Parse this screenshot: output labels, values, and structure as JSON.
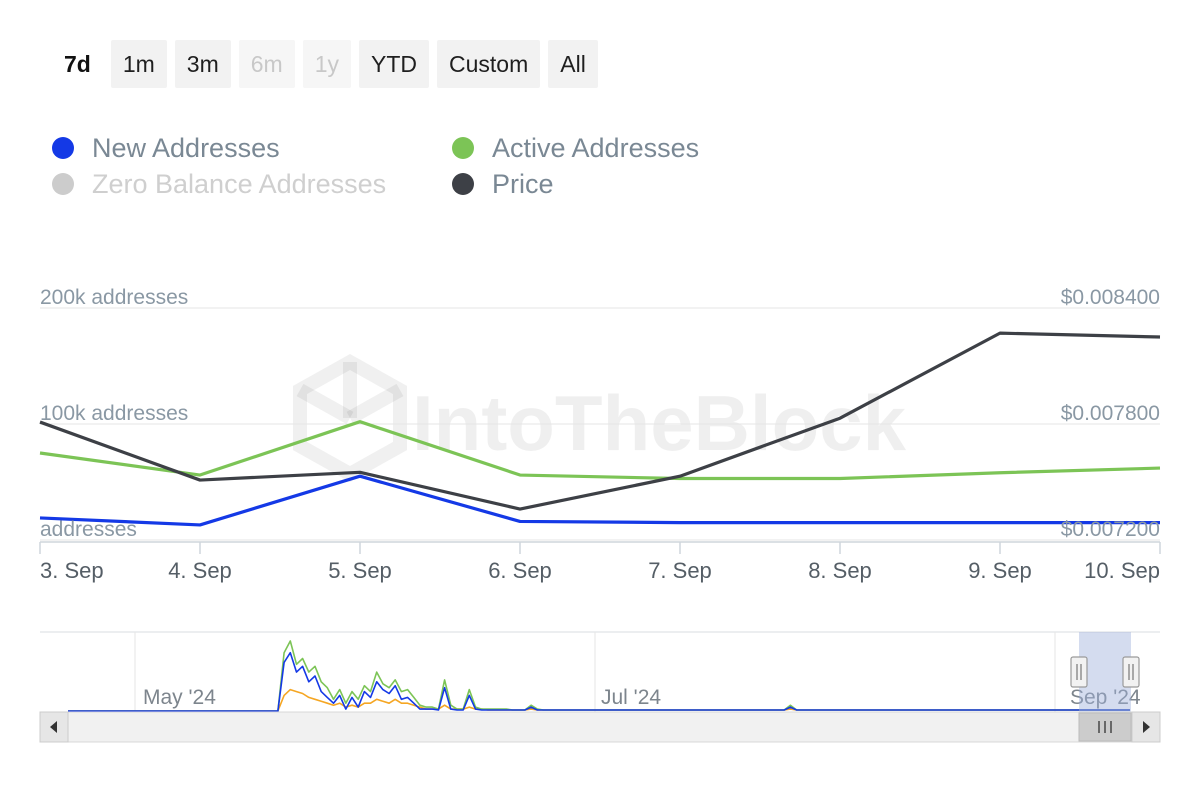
{
  "range_selector": {
    "buttons": [
      {
        "label": "7d",
        "state": "selected"
      },
      {
        "label": "1m",
        "state": "normal"
      },
      {
        "label": "3m",
        "state": "normal"
      },
      {
        "label": "6m",
        "state": "disabled"
      },
      {
        "label": "1y",
        "state": "disabled"
      },
      {
        "label": "YTD",
        "state": "normal"
      },
      {
        "label": "Custom",
        "state": "normal"
      },
      {
        "label": "All",
        "state": "normal"
      }
    ]
  },
  "legend": {
    "items": [
      {
        "label": "New Addresses",
        "color": "#1439e6",
        "active": true
      },
      {
        "label": "Active Addresses",
        "color": "#7cc456",
        "active": true
      },
      {
        "label": "Zero Balance Addresses",
        "color": "#cccccc",
        "active": false
      },
      {
        "label": "Price",
        "color": "#3d4046",
        "active": true
      }
    ]
  },
  "watermark": {
    "text": "IntoTheBlock"
  },
  "chart_data": {
    "type": "line",
    "x": [
      "3. Sep",
      "4. Sep",
      "5. Sep",
      "6. Sep",
      "7. Sep",
      "8. Sep",
      "9. Sep",
      "10. Sep"
    ],
    "left_axis": {
      "ticks": [
        0,
        100000,
        200000
      ],
      "tick_labels": [
        "addresses",
        "100k addresses",
        "200k addresses"
      ],
      "range": [
        0,
        200000
      ]
    },
    "right_axis": {
      "ticks": [
        0.0072,
        0.0078,
        0.0084
      ],
      "tick_labels": [
        "$0.007200",
        "$0.007800",
        "$0.008400"
      ],
      "range": [
        0.0072,
        0.0084
      ]
    },
    "series": [
      {
        "name": "New Addresses",
        "axis": "left",
        "color": "#1439e6",
        "values": [
          19000,
          13000,
          55000,
          16000,
          15000,
          15000,
          15000,
          15000
        ]
      },
      {
        "name": "Active Addresses",
        "axis": "left",
        "color": "#7cc456",
        "values": [
          75000,
          56000,
          102000,
          56000,
          53000,
          53000,
          58000,
          62000
        ]
      },
      {
        "name": "Price",
        "axis": "right",
        "color": "#3d4046",
        "values": [
          0.00781,
          0.00751,
          0.00755,
          0.00736,
          0.00753,
          0.00783,
          0.00827,
          0.00825
        ]
      }
    ],
    "grid": true,
    "legend_position": "top-left"
  },
  "navigator": {
    "labels": [
      "May '24",
      "Jul '24",
      "Sep '24"
    ],
    "series": {
      "green": {
        "color": "#7cc456",
        "values": [
          0,
          0,
          0,
          0,
          0,
          0,
          0,
          0,
          0,
          0,
          0,
          0,
          0,
          0,
          0,
          0,
          0,
          0,
          0,
          0,
          0,
          0,
          0,
          0,
          0,
          0,
          0,
          0,
          0,
          0,
          0,
          0,
          0,
          0,
          0,
          60,
          72,
          48,
          54,
          40,
          46,
          30,
          24,
          12,
          22,
          8,
          20,
          12,
          26,
          20,
          40,
          28,
          24,
          32,
          20,
          22,
          14,
          6,
          4,
          4,
          2,
          32,
          6,
          2,
          2,
          22,
          4,
          2,
          2,
          2,
          2,
          2,
          1,
          1,
          1,
          6,
          2,
          1,
          1,
          1,
          1,
          1,
          1,
          1,
          1,
          1,
          1,
          1,
          1,
          1,
          1,
          1,
          1,
          1,
          1,
          1,
          1,
          1,
          1,
          1,
          1,
          1,
          1,
          1,
          1,
          1,
          1,
          1,
          1,
          1,
          1,
          1,
          1,
          1,
          1,
          1,
          1,
          6,
          1,
          1,
          1,
          1,
          1,
          1,
          1,
          1,
          1,
          1,
          1,
          1,
          1,
          1,
          1,
          1,
          1,
          1,
          1,
          1,
          1,
          1,
          1,
          1,
          1,
          1,
          1,
          1,
          1,
          1,
          1,
          1,
          1,
          1,
          1,
          1,
          1,
          1,
          1,
          1,
          1,
          1,
          1,
          1,
          1,
          1,
          1,
          1,
          1,
          1,
          1,
          1,
          1,
          1,
          1
        ]
      },
      "blue": {
        "color": "#1439e6",
        "values": [
          0,
          0,
          0,
          0,
          0,
          0,
          0,
          0,
          0,
          0,
          0,
          0,
          0,
          0,
          0,
          0,
          0,
          0,
          0,
          0,
          0,
          0,
          0,
          0,
          0,
          0,
          0,
          0,
          0,
          0,
          0,
          0,
          0,
          0,
          0,
          50,
          60,
          40,
          46,
          30,
          36,
          20,
          14,
          8,
          16,
          2,
          14,
          4,
          20,
          14,
          30,
          22,
          18,
          26,
          12,
          14,
          8,
          2,
          2,
          2,
          1,
          24,
          2,
          1,
          1,
          16,
          2,
          1,
          1,
          1,
          1,
          1,
          1,
          1,
          1,
          4,
          1,
          1,
          1,
          1,
          1,
          1,
          1,
          1,
          1,
          1,
          1,
          1,
          1,
          1,
          1,
          1,
          1,
          1,
          1,
          1,
          1,
          1,
          1,
          1,
          1,
          1,
          1,
          1,
          1,
          1,
          1,
          1,
          1,
          1,
          1,
          1,
          1,
          1,
          1,
          1,
          1,
          4,
          1,
          1,
          1,
          1,
          1,
          1,
          1,
          1,
          1,
          1,
          1,
          1,
          1,
          1,
          1,
          1,
          1,
          1,
          1,
          1,
          1,
          1,
          1,
          1,
          1,
          1,
          1,
          1,
          1,
          1,
          1,
          1,
          1,
          1,
          1,
          1,
          1,
          1,
          1,
          1,
          1,
          1,
          1,
          1,
          1,
          1,
          1,
          1,
          1,
          1,
          1,
          1,
          1,
          1,
          1
        ]
      },
      "orange": {
        "color": "#f5a623",
        "values": [
          0,
          0,
          0,
          0,
          0,
          0,
          0,
          0,
          0,
          0,
          0,
          0,
          0,
          0,
          0,
          0,
          0,
          0,
          0,
          0,
          0,
          0,
          0,
          0,
          0,
          0,
          0,
          0,
          0,
          0,
          0,
          0,
          0,
          0,
          0,
          16,
          22,
          20,
          18,
          14,
          12,
          10,
          8,
          6,
          8,
          4,
          6,
          4,
          8,
          8,
          12,
          10,
          8,
          12,
          8,
          8,
          6,
          4,
          2,
          2,
          2,
          6,
          2,
          2,
          2,
          4,
          2,
          2,
          1,
          1,
          1,
          1,
          1,
          1,
          1,
          2,
          1,
          1,
          1,
          1,
          1,
          1,
          1,
          1,
          1,
          1,
          1,
          1,
          1,
          1,
          1,
          1,
          1,
          1,
          1,
          1,
          1,
          1,
          1,
          1,
          1,
          1,
          1,
          1,
          1,
          1,
          1,
          1,
          1,
          1,
          1,
          1,
          1,
          1,
          1,
          1,
          1,
          2,
          1,
          1,
          1,
          1,
          1,
          1,
          1,
          1,
          1,
          1,
          1,
          1,
          1,
          1,
          1,
          1,
          1,
          1,
          1,
          1,
          1,
          1,
          1,
          1,
          1,
          1,
          1,
          1,
          1,
          1,
          1,
          1,
          1,
          1,
          1,
          1,
          1,
          1,
          1,
          1,
          1,
          1,
          1,
          1,
          1,
          1,
          1,
          1,
          1,
          1,
          1,
          1,
          1,
          1,
          1
        ]
      }
    }
  }
}
